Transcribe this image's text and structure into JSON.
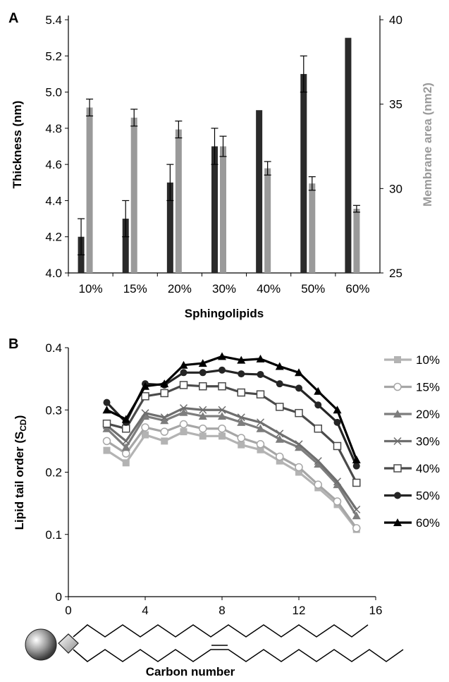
{
  "chart_data": [
    {
      "panel": "A",
      "type": "bar",
      "categories": [
        "10%",
        "15%",
        "20%",
        "30%",
        "40%",
        "50%",
        "60%"
      ],
      "xlabel": "Sphingolipids",
      "ylabel": "Thickness (nm)",
      "ylabel_right": "Membrane area (nm2)",
      "ylim": [
        4.0,
        5.4
      ],
      "yticks": [
        "4.0",
        "4.2",
        "4.4",
        "4.6",
        "4.8",
        "5.0",
        "5.2",
        "5.4"
      ],
      "ylim_right": [
        25,
        40
      ],
      "yticks_right": [
        "25",
        "30",
        "35",
        "40"
      ],
      "series": [
        {
          "axis": "left",
          "color": "#2a2a2a",
          "values": [
            4.2,
            4.3,
            4.5,
            4.7,
            4.9,
            5.1,
            5.3
          ],
          "errors": [
            0.1,
            0.1,
            0.1,
            0.1,
            0.0,
            0.1,
            0.0
          ]
        },
        {
          "axis": "right",
          "color": "#9a9a9a",
          "values": [
            34.8,
            34.2,
            33.5,
            32.5,
            31.2,
            30.3,
            28.8
          ],
          "errors": [
            0.5,
            0.5,
            0.5,
            0.6,
            0.4,
            0.4,
            0.2
          ]
        }
      ]
    },
    {
      "panel": "B",
      "type": "line",
      "xlabel": "Carbon number",
      "ylabel": "Lipid tail order (SCD)",
      "xlim": [
        0,
        16
      ],
      "xticks": [
        "0",
        "4",
        "8",
        "12",
        "16"
      ],
      "ylim": [
        0,
        0.4
      ],
      "yticks": [
        "0",
        "0.1",
        "0.2",
        "0.3",
        "0.4"
      ],
      "x": [
        2,
        3,
        4,
        5,
        6,
        7,
        8,
        9,
        10,
        11,
        12,
        13,
        14,
        15
      ],
      "series": [
        {
          "name": "10%",
          "color": "#b3b3b3",
          "marker": "square",
          "values": [
            0.235,
            0.215,
            0.26,
            0.25,
            0.265,
            0.258,
            0.258,
            0.244,
            0.236,
            0.218,
            0.2,
            0.175,
            0.148,
            0.108
          ]
        },
        {
          "name": "15%",
          "color": "#a6a6a6",
          "marker": "circle-open",
          "values": [
            0.25,
            0.23,
            0.272,
            0.265,
            0.277,
            0.27,
            0.27,
            0.255,
            0.245,
            0.225,
            0.208,
            0.18,
            0.153,
            0.11
          ]
        },
        {
          "name": "20%",
          "color": "#7d7d7d",
          "marker": "triangle",
          "values": [
            0.27,
            0.24,
            0.29,
            0.283,
            0.296,
            0.29,
            0.29,
            0.28,
            0.27,
            0.253,
            0.24,
            0.213,
            0.18,
            0.13
          ]
        },
        {
          "name": "30%",
          "color": "#6e6e6e",
          "marker": "x",
          "values": [
            0.275,
            0.25,
            0.295,
            0.288,
            0.303,
            0.3,
            0.3,
            0.288,
            0.28,
            0.262,
            0.245,
            0.218,
            0.185,
            0.14
          ]
        },
        {
          "name": "40%",
          "color": "#4a4a4a",
          "marker": "square-open",
          "values": [
            0.278,
            0.27,
            0.322,
            0.327,
            0.34,
            0.338,
            0.338,
            0.328,
            0.325,
            0.305,
            0.295,
            0.27,
            0.242,
            0.183
          ]
        },
        {
          "name": "50%",
          "color": "#252525",
          "marker": "circle",
          "values": [
            0.312,
            0.28,
            0.342,
            0.34,
            0.36,
            0.36,
            0.364,
            0.358,
            0.357,
            0.342,
            0.335,
            0.308,
            0.28,
            0.21
          ]
        },
        {
          "name": "60%",
          "color": "#000000",
          "marker": "triangle",
          "values": [
            0.3,
            0.285,
            0.338,
            0.342,
            0.372,
            0.375,
            0.386,
            0.38,
            0.382,
            0.37,
            0.36,
            0.33,
            0.3,
            0.22
          ]
        }
      ]
    }
  ]
}
